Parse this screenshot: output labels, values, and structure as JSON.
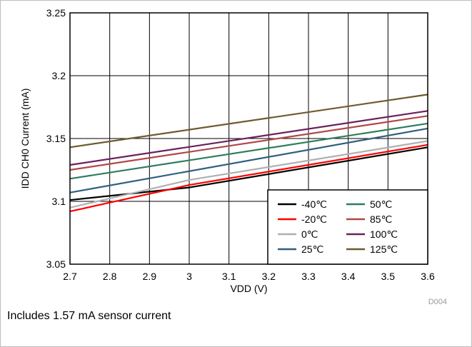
{
  "chart_data": {
    "type": "line",
    "xlabel": "VDD (V)",
    "ylabel": "IDD CH0 Current (mA)",
    "xlim": [
      2.7,
      3.6
    ],
    "ylim": [
      3.05,
      3.25
    ],
    "xticks": [
      "2.7",
      "2.8",
      "2.9",
      "3",
      "3.1",
      "3.2",
      "3.3",
      "3.4",
      "3.5",
      "3.6"
    ],
    "yticks": [
      "3.05",
      "3.1",
      "3.15",
      "3.2",
      "3.25"
    ],
    "grid": true,
    "legend_position": "bottom-right",
    "legend_columns": 2,
    "series": [
      {
        "name": "-40℃",
        "color": "#000000",
        "x": [
          2.7,
          3.0,
          3.6
        ],
        "y": [
          3.101,
          3.111,
          3.143
        ]
      },
      {
        "name": "-20℃",
        "color": "#ff0000",
        "x": [
          2.7,
          3.0,
          3.6
        ],
        "y": [
          3.092,
          3.113,
          3.145
        ]
      },
      {
        "name": "0℃",
        "color": "#b0b0b0",
        "x": [
          2.7,
          3.0,
          3.6
        ],
        "y": [
          3.095,
          3.117,
          3.148
        ]
      },
      {
        "name": "25℃",
        "color": "#2f5f7f",
        "x": [
          2.7,
          3.6
        ],
        "y": [
          3.107,
          3.158
        ]
      },
      {
        "name": "50℃",
        "color": "#2e7d5b",
        "x": [
          2.7,
          3.6
        ],
        "y": [
          3.118,
          3.162
        ]
      },
      {
        "name": "85℃",
        "color": "#b04848",
        "x": [
          2.7,
          3.6
        ],
        "y": [
          3.125,
          3.168
        ]
      },
      {
        "name": "100℃",
        "color": "#6b2060",
        "x": [
          2.7,
          3.6
        ],
        "y": [
          3.129,
          3.172
        ]
      },
      {
        "name": "125℃",
        "color": "#6e5a2e",
        "x": [
          2.7,
          3.6
        ],
        "y": [
          3.143,
          3.185
        ]
      }
    ]
  },
  "figure_id": "D004",
  "footnote": "Includes 1.57 mA sensor current"
}
